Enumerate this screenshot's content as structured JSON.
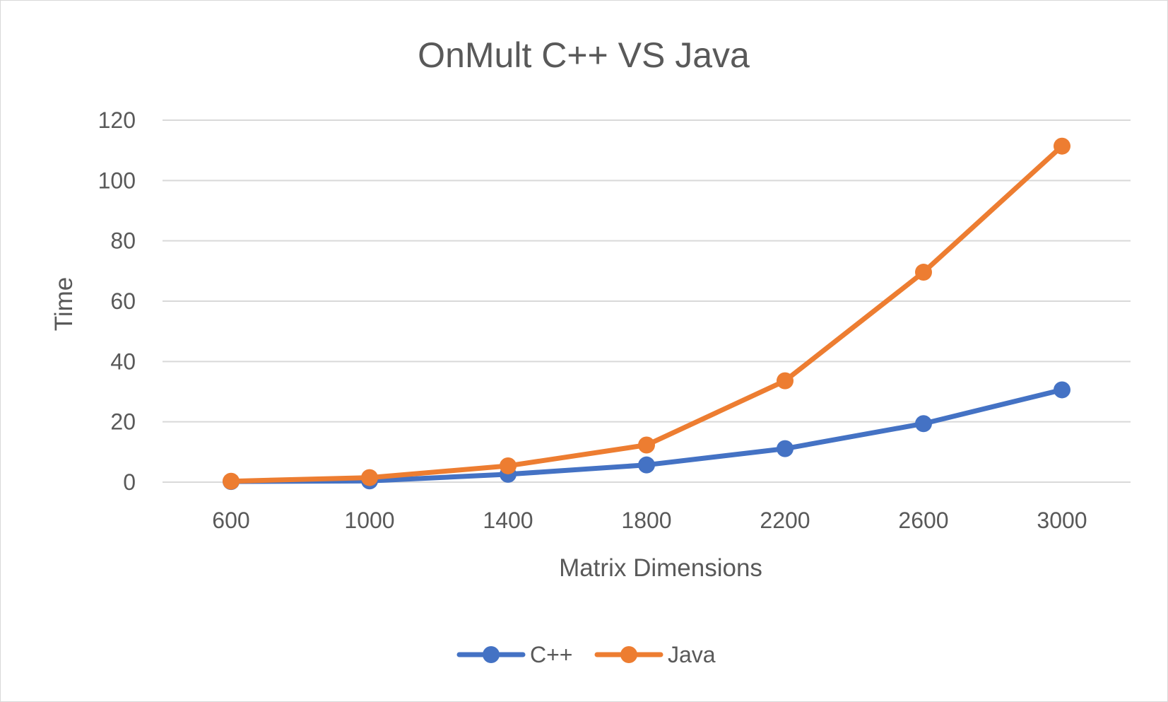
{
  "chart_data": {
    "type": "line",
    "title": "OnMult C++ VS Java",
    "xlabel": "Matrix Dimensions",
    "ylabel": "Time",
    "categories": [
      "600",
      "1000",
      "1400",
      "1800",
      "2200",
      "2600",
      "3000"
    ],
    "yticks": [
      "0",
      "20",
      "40",
      "60",
      "80",
      "100",
      "120"
    ],
    "ylim": [
      0,
      120
    ],
    "grid": true,
    "legend_position": "bottom",
    "series": [
      {
        "name": "C++",
        "color": "#4472c4",
        "values": [
          0.2,
          0.4,
          2.6,
          5.7,
          11.1,
          19.4,
          30.6
        ]
      },
      {
        "name": "Java",
        "color": "#ed7d31",
        "values": [
          0.3,
          1.5,
          5.4,
          12.3,
          33.6,
          69.6,
          111.4
        ]
      }
    ]
  }
}
